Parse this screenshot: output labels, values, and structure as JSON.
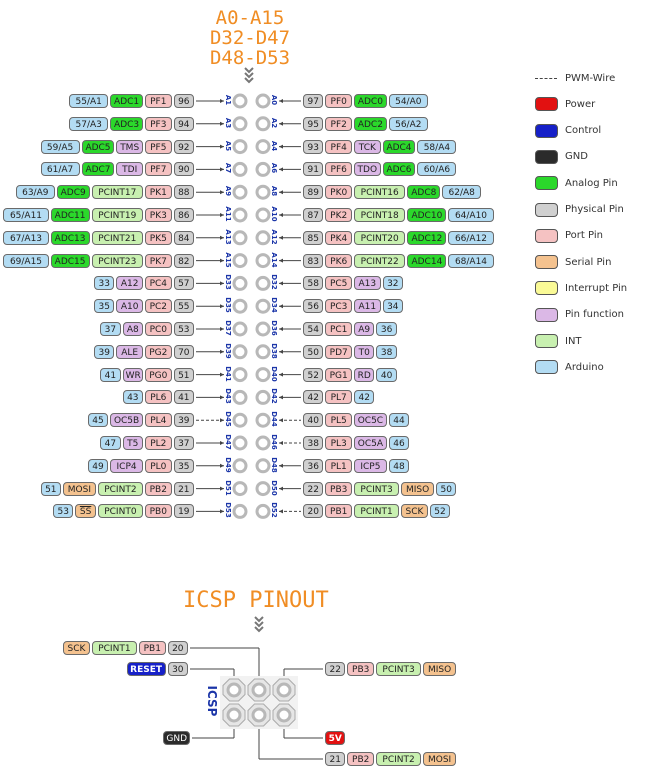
{
  "header": {
    "lines": [
      "A0-A15",
      "D32-D47",
      "D48-D53"
    ]
  },
  "legend": [
    {
      "key": "pwm",
      "label": "PWM-Wire"
    },
    {
      "key": "power",
      "label": "Power",
      "color": "#e21111"
    },
    {
      "key": "control",
      "label": "Control",
      "color": "#1620c8"
    },
    {
      "key": "gnd",
      "label": "GND",
      "color": "#2b2b2b"
    },
    {
      "key": "analog",
      "label": "Analog Pin",
      "color": "#2bd82b"
    },
    {
      "key": "physical",
      "label": "Physical Pin",
      "color": "#d0d0d0"
    },
    {
      "key": "port",
      "label": "Port Pin",
      "color": "#f5c2c2"
    },
    {
      "key": "serial",
      "label": "Serial Pin",
      "color": "#f4c28f"
    },
    {
      "key": "interrupt",
      "label": "Interrupt Pin",
      "color": "#fafa96"
    },
    {
      "key": "func",
      "label": "Pin function",
      "color": "#dbb8e6"
    },
    {
      "key": "int",
      "label": "INT",
      "color": "#c8f0b0"
    },
    {
      "key": "arduino",
      "label": "Arduino",
      "color": "#b3dcf3"
    }
  ],
  "rows": [
    {
      "pl": "A1",
      "pr": "A0",
      "pwmL": false,
      "pwmR": false,
      "left": [
        [
          "arduino",
          "55/A1"
        ],
        [
          "analog",
          "ADC1"
        ],
        [
          "port",
          "PF1"
        ],
        [
          "physical",
          "96"
        ]
      ],
      "right": [
        [
          "physical",
          "97"
        ],
        [
          "port",
          "PF0"
        ],
        [
          "analog",
          "ADC0"
        ],
        [
          "arduino",
          "54/A0"
        ]
      ]
    },
    {
      "pl": "A3",
      "pr": "A2",
      "pwmL": false,
      "pwmR": false,
      "left": [
        [
          "arduino",
          "57/A3"
        ],
        [
          "analog",
          "ADC3"
        ],
        [
          "port",
          "PF3"
        ],
        [
          "physical",
          "94"
        ]
      ],
      "right": [
        [
          "physical",
          "95"
        ],
        [
          "port",
          "PF2"
        ],
        [
          "analog",
          "ADC2"
        ],
        [
          "arduino",
          "56/A2"
        ]
      ]
    },
    {
      "pl": "A5",
      "pr": "A4",
      "pwmL": false,
      "pwmR": false,
      "left": [
        [
          "arduino",
          "59/A5"
        ],
        [
          "analog",
          "ADC5"
        ],
        [
          "func",
          "TMS"
        ],
        [
          "port",
          "PF5"
        ],
        [
          "physical",
          "92"
        ]
      ],
      "right": [
        [
          "physical",
          "93"
        ],
        [
          "port",
          "PF4"
        ],
        [
          "func",
          "TCK"
        ],
        [
          "analog",
          "ADC4"
        ],
        [
          "arduino",
          "58/A4"
        ]
      ]
    },
    {
      "pl": "A7",
      "pr": "A6",
      "pwmL": false,
      "pwmR": false,
      "left": [
        [
          "arduino",
          "61/A7"
        ],
        [
          "analog",
          "ADC7"
        ],
        [
          "func",
          "TDI"
        ],
        [
          "port",
          "PF7"
        ],
        [
          "physical",
          "90"
        ]
      ],
      "right": [
        [
          "physical",
          "91"
        ],
        [
          "port",
          "PF6"
        ],
        [
          "func",
          "TDO"
        ],
        [
          "analog",
          "ADC6"
        ],
        [
          "arduino",
          "60/A6"
        ]
      ]
    },
    {
      "pl": "A9",
      "pr": "A8",
      "pwmL": false,
      "pwmR": false,
      "left": [
        [
          "arduino",
          "63/A9"
        ],
        [
          "analog",
          "ADC9"
        ],
        [
          "int",
          "PCINT17"
        ],
        [
          "port",
          "PK1"
        ],
        [
          "physical",
          "88"
        ]
      ],
      "right": [
        [
          "physical",
          "89"
        ],
        [
          "port",
          "PK0"
        ],
        [
          "int",
          "PCINT16"
        ],
        [
          "analog",
          "ADC8"
        ],
        [
          "arduino",
          "62/A8"
        ]
      ]
    },
    {
      "pl": "A11",
      "pr": "A10",
      "pwmL": false,
      "pwmR": false,
      "left": [
        [
          "arduino",
          "65/A11"
        ],
        [
          "analog",
          "ADC11"
        ],
        [
          "int",
          "PCINT19"
        ],
        [
          "port",
          "PK3"
        ],
        [
          "physical",
          "86"
        ]
      ],
      "right": [
        [
          "physical",
          "87"
        ],
        [
          "port",
          "PK2"
        ],
        [
          "int",
          "PCINT18"
        ],
        [
          "analog",
          "ADC10"
        ],
        [
          "arduino",
          "64/A10"
        ]
      ]
    },
    {
      "pl": "A13",
      "pr": "A12",
      "pwmL": false,
      "pwmR": false,
      "left": [
        [
          "arduino",
          "67/A13"
        ],
        [
          "analog",
          "ADC13"
        ],
        [
          "int",
          "PCINT21"
        ],
        [
          "port",
          "PK5"
        ],
        [
          "physical",
          "84"
        ]
      ],
      "right": [
        [
          "physical",
          "85"
        ],
        [
          "port",
          "PK4"
        ],
        [
          "int",
          "PCINT20"
        ],
        [
          "analog",
          "ADC12"
        ],
        [
          "arduino",
          "66/A12"
        ]
      ]
    },
    {
      "pl": "A15",
      "pr": "A14",
      "pwmL": false,
      "pwmR": false,
      "left": [
        [
          "arduino",
          "69/A15"
        ],
        [
          "analog",
          "ADC15"
        ],
        [
          "int",
          "PCINT23"
        ],
        [
          "port",
          "PK7"
        ],
        [
          "physical",
          "82"
        ]
      ],
      "right": [
        [
          "physical",
          "83"
        ],
        [
          "port",
          "PK6"
        ],
        [
          "int",
          "PCINT22"
        ],
        [
          "analog",
          "ADC14"
        ],
        [
          "arduino",
          "68/A14"
        ]
      ]
    },
    {
      "pl": "D33",
      "pr": "D32",
      "pwmL": false,
      "pwmR": false,
      "left": [
        [
          "arduino",
          "33"
        ],
        [
          "func",
          "A12"
        ],
        [
          "port",
          "PC4"
        ],
        [
          "physical",
          "57"
        ]
      ],
      "right": [
        [
          "physical",
          "58"
        ],
        [
          "port",
          "PC5"
        ],
        [
          "func",
          "A13"
        ],
        [
          "arduino",
          "32"
        ]
      ]
    },
    {
      "pl": "D35",
      "pr": "D34",
      "pwmL": false,
      "pwmR": false,
      "left": [
        [
          "arduino",
          "35"
        ],
        [
          "func",
          "A10"
        ],
        [
          "port",
          "PC2"
        ],
        [
          "physical",
          "55"
        ]
      ],
      "right": [
        [
          "physical",
          "56"
        ],
        [
          "port",
          "PC3"
        ],
        [
          "func",
          "A11"
        ],
        [
          "arduino",
          "34"
        ]
      ]
    },
    {
      "pl": "D37",
      "pr": "D36",
      "pwmL": false,
      "pwmR": false,
      "left": [
        [
          "arduino",
          "37"
        ],
        [
          "func",
          "A8"
        ],
        [
          "port",
          "PC0"
        ],
        [
          "physical",
          "53"
        ]
      ],
      "right": [
        [
          "physical",
          "54"
        ],
        [
          "port",
          "PC1"
        ],
        [
          "func",
          "A9"
        ],
        [
          "arduino",
          "36"
        ]
      ]
    },
    {
      "pl": "D39",
      "pr": "D38",
      "pwmL": false,
      "pwmR": false,
      "left": [
        [
          "arduino",
          "39"
        ],
        [
          "func",
          "ALE"
        ],
        [
          "port",
          "PG2"
        ],
        [
          "physical",
          "70"
        ]
      ],
      "right": [
        [
          "physical",
          "50"
        ],
        [
          "port",
          "PD7"
        ],
        [
          "func",
          "T0"
        ],
        [
          "arduino",
          "38"
        ]
      ]
    },
    {
      "pl": "D41",
      "pr": "D40",
      "pwmL": false,
      "pwmR": false,
      "left": [
        [
          "arduino",
          "41"
        ],
        [
          "func",
          "WR"
        ],
        [
          "port",
          "PG0"
        ],
        [
          "physical",
          "51"
        ]
      ],
      "right": [
        [
          "physical",
          "52"
        ],
        [
          "port",
          "PG1"
        ],
        [
          "func",
          "RD"
        ],
        [
          "arduino",
          "40"
        ]
      ]
    },
    {
      "pl": "D43",
      "pr": "D42",
      "pwmL": false,
      "pwmR": false,
      "left": [
        [
          "arduino",
          "43"
        ],
        [
          "port",
          "PL6"
        ],
        [
          "physical",
          "41"
        ]
      ],
      "right": [
        [
          "physical",
          "42"
        ],
        [
          "port",
          "PL7"
        ],
        [
          "arduino",
          "42"
        ]
      ]
    },
    {
      "pl": "D45",
      "pr": "D44",
      "pwmL": true,
      "pwmR": true,
      "left": [
        [
          "arduino",
          "45"
        ],
        [
          "func",
          "OC5B"
        ],
        [
          "port",
          "PL4"
        ],
        [
          "physical",
          "39"
        ]
      ],
      "right": [
        [
          "physical",
          "40"
        ],
        [
          "port",
          "PL5"
        ],
        [
          "func",
          "OC5C"
        ],
        [
          "arduino",
          "44"
        ]
      ]
    },
    {
      "pl": "D47",
      "pr": "D46",
      "pwmL": false,
      "pwmR": true,
      "left": [
        [
          "arduino",
          "47"
        ],
        [
          "func",
          "T5"
        ],
        [
          "port",
          "PL2"
        ],
        [
          "physical",
          "37"
        ]
      ],
      "right": [
        [
          "physical",
          "38"
        ],
        [
          "port",
          "PL3"
        ],
        [
          "func",
          "OC5A"
        ],
        [
          "arduino",
          "46"
        ]
      ]
    },
    {
      "pl": "D49",
      "pr": "D48",
      "pwmL": false,
      "pwmR": false,
      "left": [
        [
          "arduino",
          "49"
        ],
        [
          "func",
          "ICP4"
        ],
        [
          "port",
          "PL0"
        ],
        [
          "physical",
          "35"
        ]
      ],
      "right": [
        [
          "physical",
          "36"
        ],
        [
          "port",
          "PL1"
        ],
        [
          "func",
          "ICP5"
        ],
        [
          "arduino",
          "48"
        ]
      ]
    },
    {
      "pl": "D51",
      "pr": "D50",
      "pwmL": false,
      "pwmR": false,
      "left": [
        [
          "arduino",
          "51"
        ],
        [
          "serial",
          "MOSI"
        ],
        [
          "int",
          "PCINT2"
        ],
        [
          "port",
          "PB2"
        ],
        [
          "physical",
          "21"
        ]
      ],
      "right": [
        [
          "physical",
          "22"
        ],
        [
          "port",
          "PB3"
        ],
        [
          "int",
          "PCINT3"
        ],
        [
          "serial",
          "MISO"
        ],
        [
          "arduino",
          "50"
        ]
      ]
    },
    {
      "pl": "D53",
      "pr": "D52",
      "pwmL": false,
      "pwmR": true,
      "left": [
        [
          "arduino",
          "53"
        ],
        [
          "serial",
          "SS"
        ],
        [
          "int",
          "PCINT0"
        ],
        [
          "port",
          "PB0"
        ],
        [
          "physical",
          "19"
        ]
      ],
      "right": [
        [
          "physical",
          "20"
        ],
        [
          "port",
          "PB1"
        ],
        [
          "int",
          "PCINT1"
        ],
        [
          "serial",
          "SCK"
        ],
        [
          "arduino",
          "52"
        ]
      ]
    }
  ],
  "icsp": {
    "title": "ICSP PINOUT",
    "vertical_label": "ICSP",
    "sck_row": [
      [
        "serial",
        "SCK"
      ],
      [
        "int",
        "PCINT1"
      ],
      [
        "port",
        "PB1"
      ],
      [
        "physical",
        "20"
      ]
    ],
    "reset_row": [
      [
        "control",
        "RESET"
      ],
      [
        "physical",
        "30"
      ]
    ],
    "miso_row": [
      [
        "physical",
        "22"
      ],
      [
        "port",
        "PB3"
      ],
      [
        "int",
        "PCINT3"
      ],
      [
        "serial",
        "MISO"
      ]
    ],
    "gnd": [
      [
        "gnd",
        "GND"
      ]
    ],
    "vcc": [
      [
        "power",
        "5V"
      ]
    ],
    "mosi_row": [
      [
        "physical",
        "21"
      ],
      [
        "port",
        "PB2"
      ],
      [
        "int",
        "PCINT2"
      ],
      [
        "serial",
        "MOSI"
      ]
    ]
  }
}
